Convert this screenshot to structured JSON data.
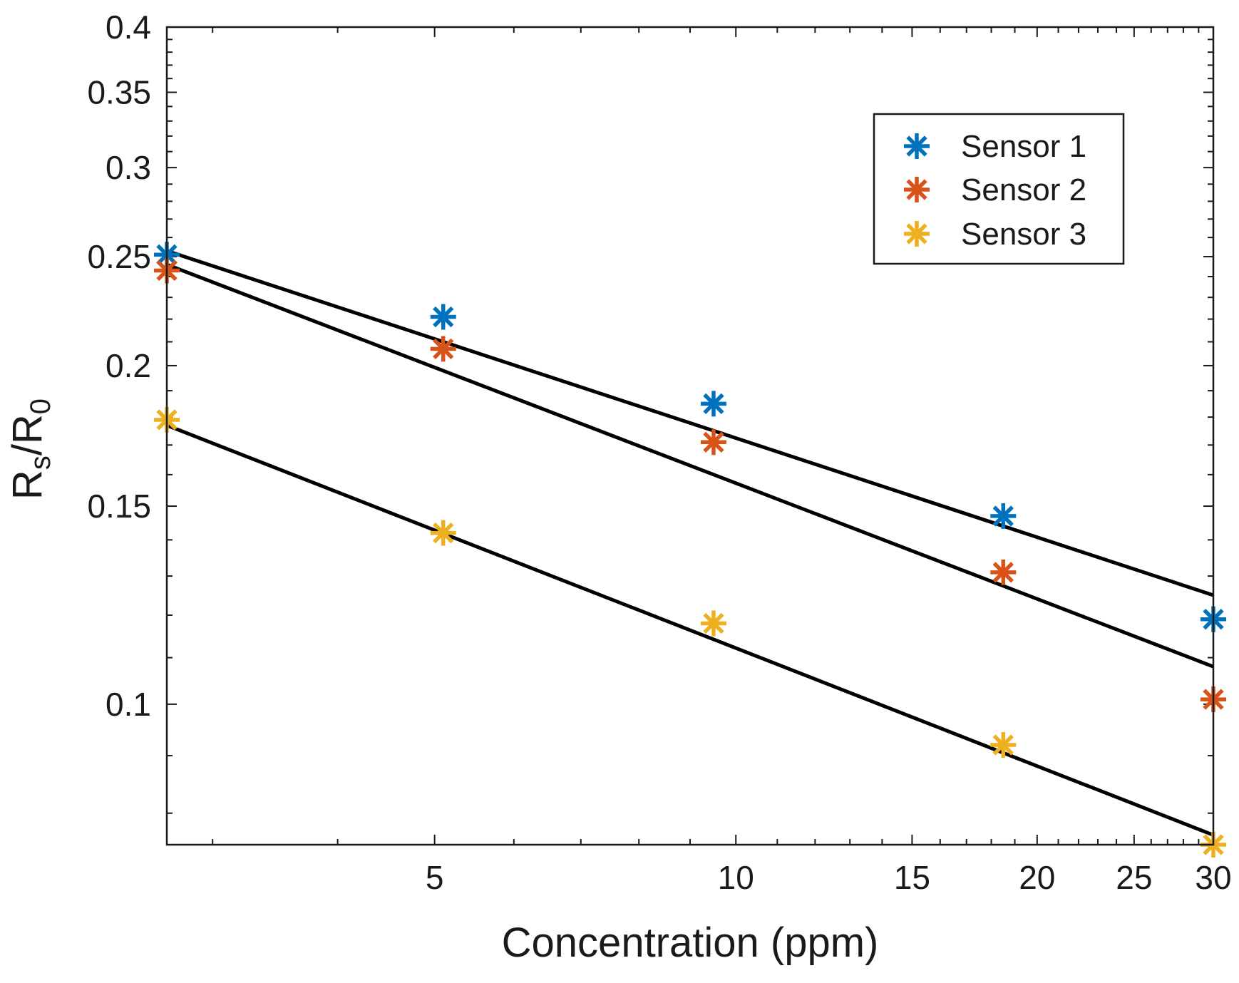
{
  "chart_data": {
    "type": "scatter",
    "title": "",
    "xlabel": "Concentration (ppm)",
    "ylabel": {
      "main": "R",
      "sub1": "s",
      "mid": "/R",
      "sub2": "0"
    },
    "x_scale": "log",
    "y_scale": "log",
    "xlim": [
      2.7,
      30
    ],
    "ylim": [
      0.075,
      0.4
    ],
    "x_ticks": [
      5,
      10,
      15,
      20,
      25,
      30
    ],
    "x_tick_labels": [
      "5",
      "10",
      "15",
      "20",
      "25",
      "30"
    ],
    "y_ticks": [
      0.1,
      0.15,
      0.2,
      0.25,
      0.3,
      0.35,
      0.4
    ],
    "y_tick_labels": [
      "0.1",
      "0.15",
      "0.2",
      "0.25",
      "0.3",
      "0.35",
      "0.4"
    ],
    "legend_position": "top-right",
    "series": [
      {
        "name": "Sensor 1",
        "color": "#0072BD",
        "marker": "asterisk",
        "x": [
          2.7,
          5.1,
          9.5,
          18.5,
          30
        ],
        "y": [
          0.251,
          0.221,
          0.185,
          0.147,
          0.119
        ],
        "fit_line": {
          "x": [
            2.7,
            30
          ],
          "y": [
            0.253,
            0.125
          ]
        }
      },
      {
        "name": "Sensor 2",
        "color": "#D95319",
        "marker": "asterisk",
        "x": [
          2.7,
          5.1,
          9.5,
          18.5,
          30
        ],
        "y": [
          0.243,
          0.207,
          0.171,
          0.131,
          0.101
        ],
        "fit_line": {
          "x": [
            2.7,
            30
          ],
          "y": [
            0.246,
            0.108
          ]
        }
      },
      {
        "name": "Sensor 3",
        "color": "#EDB120",
        "marker": "asterisk",
        "x": [
          2.7,
          5.1,
          9.5,
          18.5,
          30
        ],
        "y": [
          0.179,
          0.142,
          0.118,
          0.092,
          0.075
        ],
        "fit_line": {
          "x": [
            2.7,
            30
          ],
          "y": [
            0.177,
            0.0765
          ]
        }
      }
    ]
  }
}
